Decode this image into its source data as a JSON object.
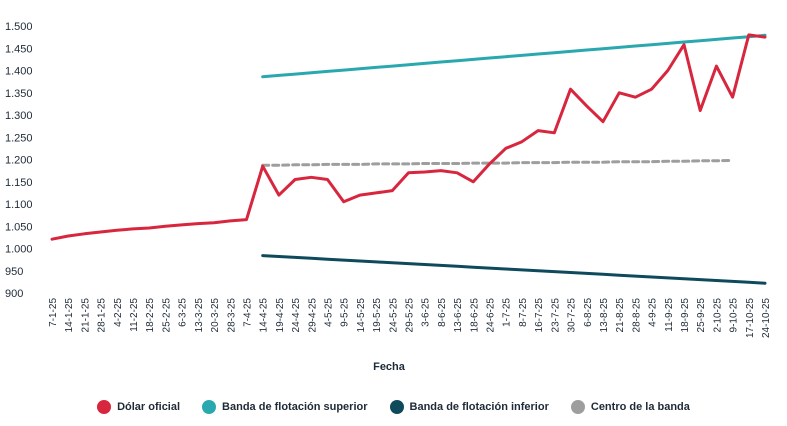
{
  "chart_data": {
    "type": "line",
    "xlabel": "Fecha",
    "ylim": [
      900,
      1500
    ],
    "yticks": [
      "1.500",
      "1.450",
      "1.400",
      "1.350",
      "1.300",
      "1.250",
      "1.200",
      "1.150",
      "1.100",
      "1.050",
      "1.000",
      "950",
      "900"
    ],
    "x": [
      "7-1-25",
      "14-1-25",
      "21-1-25",
      "28-1-25",
      "4-2-25",
      "11-2-25",
      "18-2-25",
      "25-2-25",
      "6-3-25",
      "13-3-25",
      "20-3-25",
      "28-3-25",
      "7-4-25",
      "14-4-25",
      "19-4-25",
      "24-4-25",
      "29-4-25",
      "4-5-25",
      "9-5-25",
      "14-5-25",
      "19-5-25",
      "24-5-25",
      "29-5-25",
      "3-6-25",
      "8-6-25",
      "13-6-25",
      "18-6-25",
      "24-6-25",
      "1-7-25",
      "8-7-25",
      "16-7-25",
      "23-7-25",
      "30-7-25",
      "6-8-25",
      "13-8-25",
      "21-8-25",
      "28-8-25",
      "4-9-25",
      "11-9-25",
      "18-9-25",
      "25-9-25",
      "2-10-25",
      "9-10-25",
      "17-10-25",
      "24-10-25"
    ],
    "series": [
      {
        "name": "Dólar oficial",
        "color": "#d7263d",
        "values": [
          1021,
          1028,
          1033,
          1037,
          1041,
          1044,
          1046,
          1050,
          1053,
          1056,
          1058,
          1062,
          1065,
          1185,
          1120,
          1155,
          1160,
          1155,
          1105,
          1120,
          1125,
          1130,
          1170,
          1172,
          1175,
          1170,
          1150,
          1190,
          1225,
          1240,
          1265,
          1260,
          1358,
          1320,
          1285,
          1350,
          1340,
          1358,
          1400,
          1458,
          1310,
          1410,
          1340,
          1480,
          1475
        ]
      },
      {
        "name": "Banda de flotación superior",
        "color": "#2aa8b0",
        "values": [
          null,
          null,
          null,
          null,
          null,
          null,
          null,
          null,
          null,
          null,
          null,
          null,
          null,
          1386,
          1389,
          1392,
          1395,
          1398,
          1401,
          1404,
          1407,
          1410,
          1413,
          1416,
          1419,
          1422,
          1425,
          1428,
          1431,
          1434,
          1437,
          1440,
          1443,
          1446,
          1449,
          1452,
          1455,
          1458,
          1461,
          1464,
          1467,
          1470,
          1473,
          1476,
          1479
        ]
      },
      {
        "name": "Banda de flotación inferior",
        "color": "#0f4a5c",
        "values": [
          null,
          null,
          null,
          null,
          null,
          null,
          null,
          null,
          null,
          null,
          null,
          null,
          null,
          984,
          982,
          980,
          978,
          976,
          974,
          972,
          970,
          968,
          966,
          964,
          962,
          960,
          958,
          956,
          954,
          952,
          950,
          948,
          946,
          944,
          942,
          940,
          938,
          936,
          934,
          932,
          930,
          928,
          926,
          924,
          922
        ]
      },
      {
        "name": "Centro de la banda",
        "color": "#9e9e9e",
        "dashed": true,
        "values": [
          null,
          null,
          null,
          null,
          null,
          null,
          null,
          null,
          null,
          null,
          null,
          null,
          null,
          1187,
          1187,
          1188,
          1188,
          1189,
          1189,
          1189,
          1190,
          1190,
          1190,
          1191,
          1191,
          1191,
          1192,
          1192,
          1192,
          1193,
          1193,
          1193,
          1194,
          1194,
          1194,
          1195,
          1195,
          1195,
          1196,
          1196,
          1197,
          1197,
          1198,
          null,
          null
        ]
      }
    ],
    "legend_position": "bottom",
    "grid": false
  }
}
